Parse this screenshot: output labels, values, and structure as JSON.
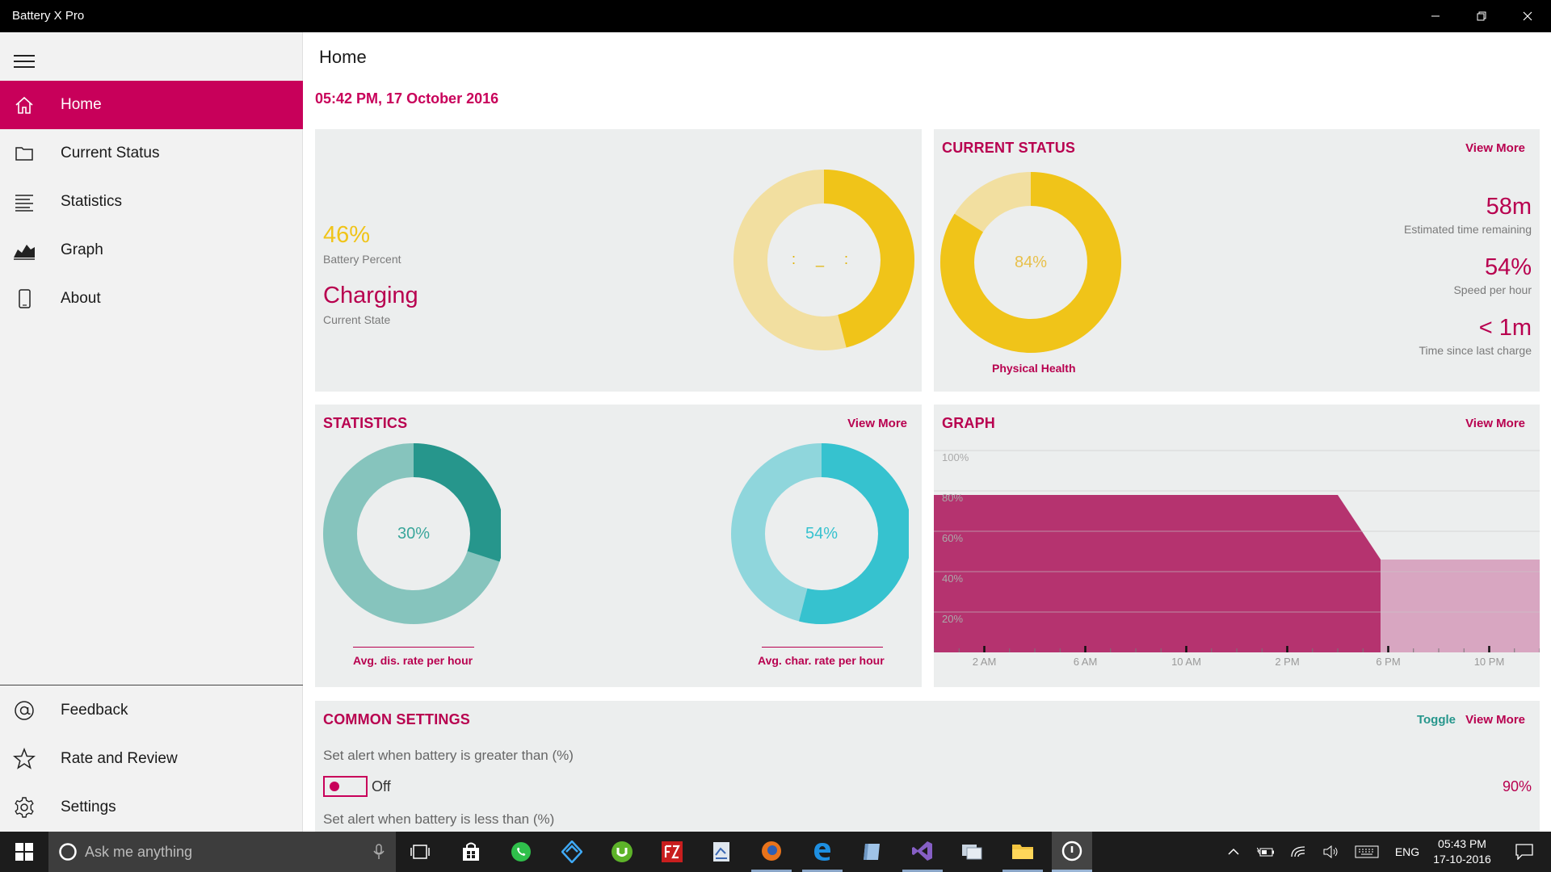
{
  "window": {
    "title": "Battery X Pro"
  },
  "sidebar": {
    "items": [
      {
        "label": "Home",
        "icon": "home-icon"
      },
      {
        "label": "Current Status",
        "icon": "folder-icon"
      },
      {
        "label": "Statistics",
        "icon": "list-icon"
      },
      {
        "label": "Graph",
        "icon": "area-chart-icon"
      },
      {
        "label": "About",
        "icon": "phone-icon"
      }
    ],
    "bottom_items": [
      {
        "label": "Feedback",
        "icon": "at-icon"
      },
      {
        "label": "Rate and Review",
        "icon": "star-icon"
      },
      {
        "label": "Settings",
        "icon": "gear-icon"
      }
    ]
  },
  "header": {
    "title": "Home",
    "datetime": "05:42 PM, 17 October 2016"
  },
  "battery_card": {
    "percent": "46%",
    "percent_label": "Battery Percent",
    "state": "Charging",
    "state_label": "Current State",
    "percent_value": 46,
    "face": ": _ :"
  },
  "status_card": {
    "title": "CURRENT STATUS",
    "view_more": "View More",
    "health_value": 84,
    "health_text": "84%",
    "health_label": "Physical Health",
    "stats": [
      {
        "value": "58m",
        "label": "Estimated time remaining"
      },
      {
        "value": "54%",
        "label": "Speed per hour"
      },
      {
        "value": "< 1m",
        "label": "Time since last charge"
      }
    ]
  },
  "statistics_card": {
    "title": "STATISTICS",
    "view_more": "View More",
    "discharge": {
      "value": 30,
      "text": "30%",
      "label": "Avg. dis. rate per hour"
    },
    "charge": {
      "value": 54,
      "text": "54%",
      "label": "Avg. char. rate per hour"
    }
  },
  "graph_card": {
    "title": "GRAPH",
    "view_more": "View More"
  },
  "chart_data": {
    "type": "area",
    "y_ticks": [
      "100%",
      "80%",
      "60%",
      "40%",
      "20%"
    ],
    "x_ticks": [
      "2 AM",
      "6 AM",
      "10 AM",
      "2 PM",
      "6 PM",
      "10 PM"
    ],
    "ylim": [
      0,
      100
    ],
    "grid": true,
    "series": [
      {
        "values": [
          {
            "x": 0,
            "y": 78
          },
          {
            "x": 16,
            "y": 78
          },
          {
            "x": 17.7,
            "y": 46
          }
        ]
      },
      {
        "values": [
          {
            "x": 17.7,
            "y": 46
          },
          {
            "x": 24,
            "y": 46
          }
        ]
      }
    ],
    "colors": [
      "#b5336f",
      "#d8a6c1"
    ]
  },
  "settings_card": {
    "title": "COMMON SETTINGS",
    "toggle_label": "Toggle",
    "view_more": "View More",
    "alert_high_label": "Set alert when battery is greater than (%)",
    "alert_high_state": "Off",
    "alert_high_value": "90%",
    "alert_low_label": "Set alert when battery is less than (%)"
  },
  "taskbar": {
    "search_placeholder": "Ask me anything",
    "lang": "ENG",
    "time": "05:43 PM",
    "date": "17-10-2016"
  },
  "colors": {
    "accent": "#c8005a",
    "battery_yellow": "#f0c419",
    "battery_yellow_light": "#f2dfa0",
    "teal_dark": "#26968c",
    "teal_light": "#86c4bd",
    "cyan": "#36c2cf",
    "cyan_light": "#8fd6dc"
  }
}
